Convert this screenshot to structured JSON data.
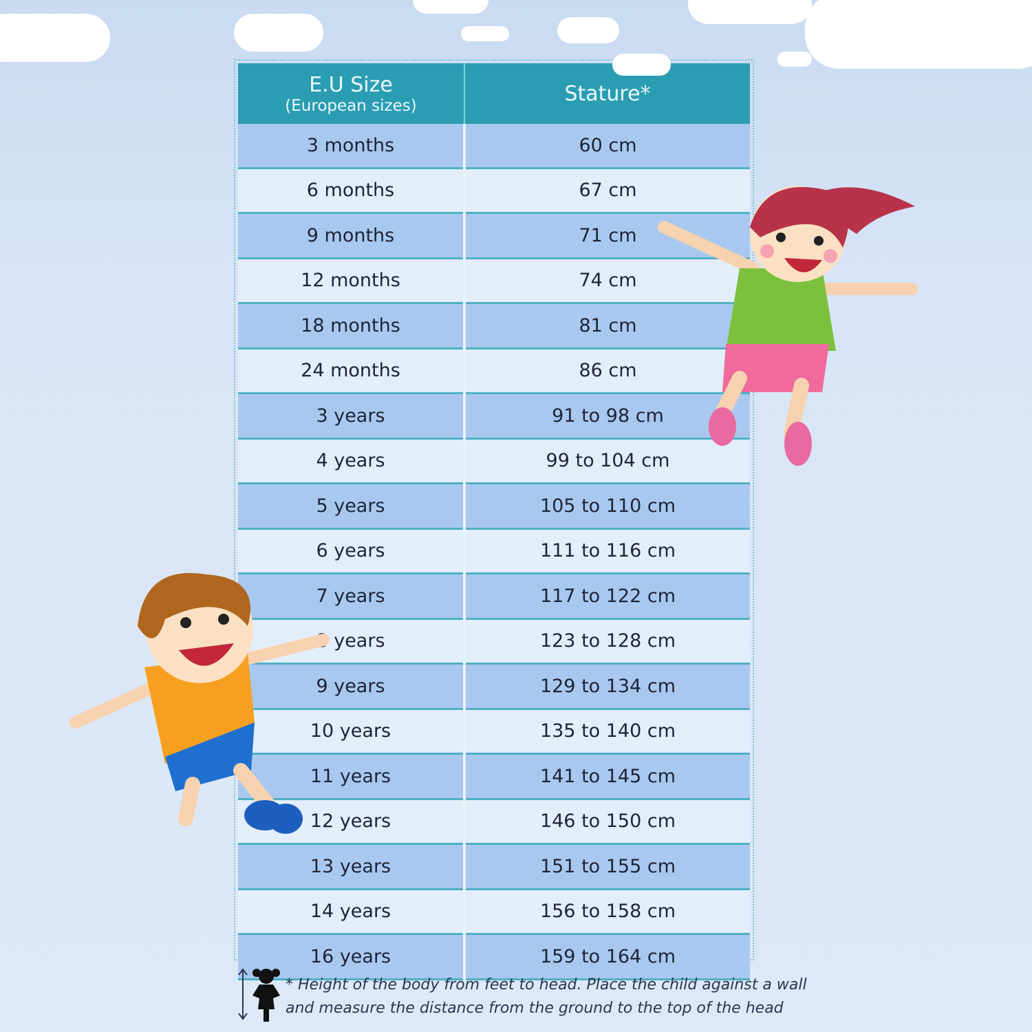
{
  "table": {
    "headers": {
      "size": "E.U Size",
      "size_sub": "(European sizes)",
      "stature": "Stature*"
    },
    "rows": [
      {
        "size": "3 months",
        "stature": "60 cm"
      },
      {
        "size": "6 months",
        "stature": "67 cm"
      },
      {
        "size": "9 months",
        "stature": "71 cm"
      },
      {
        "size": "12 months",
        "stature": "74 cm"
      },
      {
        "size": "18 months",
        "stature": "81 cm"
      },
      {
        "size": "24 months",
        "stature": "86 cm"
      },
      {
        "size": "3 years",
        "stature": "91 to 98 cm"
      },
      {
        "size": "4 years",
        "stature": "99 to 104 cm"
      },
      {
        "size": "5 years",
        "stature": "105 to 110 cm"
      },
      {
        "size": "6 years",
        "stature": "111 to 116 cm"
      },
      {
        "size": "7 years",
        "stature": "117 to 122 cm"
      },
      {
        "size": "8 years",
        "stature": "123 to 128 cm"
      },
      {
        "size": "9 years",
        "stature": "129 to 134 cm"
      },
      {
        "size": "10 years",
        "stature": "135 to 140 cm"
      },
      {
        "size": "11 years",
        "stature": "141 to 145 cm"
      },
      {
        "size": "12 years",
        "stature": "146 to 150 cm"
      },
      {
        "size": "13 years",
        "stature": "151 to 155 cm"
      },
      {
        "size": "14 years",
        "stature": "156 to 158 cm"
      },
      {
        "size": "16 years",
        "stature": "159 to 164 cm"
      }
    ]
  },
  "footnote": {
    "line1": "* Height of the body from feet to head. Place the child against a wall",
    "line2": "and measure the distance from the ground to the top of the head"
  },
  "colors": {
    "header": "#2b9db2",
    "row_dark": "#a9c8ef",
    "row_light": "#e3eefb",
    "background": "#d8e5f6"
  },
  "icons": [
    "child-silhouette-icon",
    "height-arrow-icon",
    "girl-illustration",
    "boy-illustration",
    "cloud"
  ]
}
